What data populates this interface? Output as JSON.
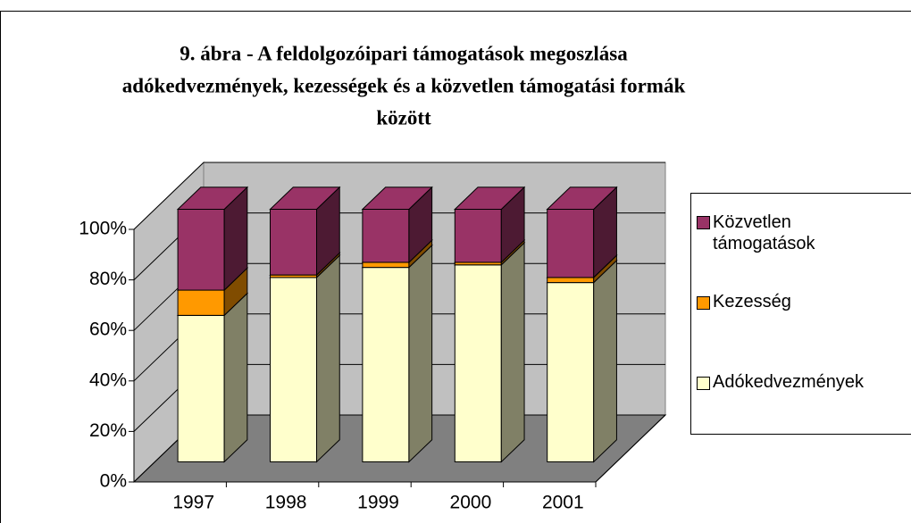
{
  "chart_data": {
    "type": "stacked-bar-3d",
    "title": [
      "9. ábra - A feldolgozóipari támogatások megoszlása",
      "adókedvezmények, kezességek és a közvetlen támogatási formák",
      "között"
    ],
    "categories": [
      "1997",
      "1998",
      "1999",
      "2000",
      "2001"
    ],
    "series": [
      {
        "name": "Adókedvezmények",
        "color": "#FFFFCC",
        "side": "#808066",
        "values": [
          58,
          73,
          77,
          78,
          71
        ]
      },
      {
        "name": "Kezesség",
        "color": "#FF9900",
        "side": "#804C00",
        "values": [
          10,
          1,
          2,
          1,
          2
        ]
      },
      {
        "name": "Közvetlen támogatások",
        "color": "#993366",
        "side": "#4D1A33",
        "values": [
          32,
          26,
          21,
          21,
          27
        ]
      }
    ],
    "ylim": [
      0,
      100
    ],
    "yticks": [
      {
        "value": 0,
        "label": "0%"
      },
      {
        "value": 20,
        "label": "20%"
      },
      {
        "value": 40,
        "label": "40%"
      },
      {
        "value": 60,
        "label": "60%"
      },
      {
        "value": 80,
        "label": "80%"
      },
      {
        "value": 100,
        "label": "100%"
      }
    ],
    "grid": true,
    "legend": "right"
  }
}
